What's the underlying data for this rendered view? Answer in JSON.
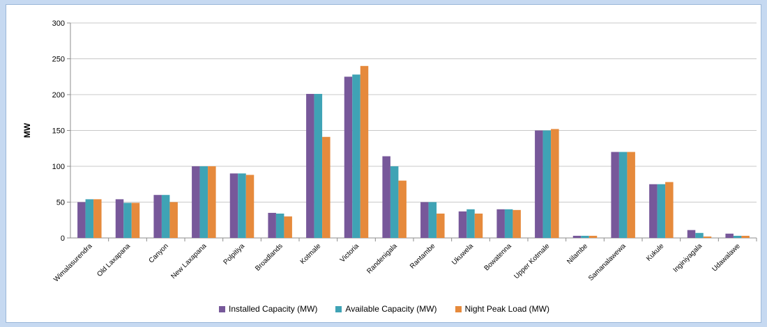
{
  "chart_data": {
    "type": "bar",
    "title": "",
    "xlabel": "",
    "ylabel": "MW",
    "ylim": [
      0,
      300
    ],
    "yticks": [
      0,
      50,
      100,
      150,
      200,
      250,
      300
    ],
    "grid": true,
    "legend_position": "bottom",
    "categories": [
      "Wimalasurendra",
      "Old Laxapana",
      "Canyon",
      "New Laxapana",
      "Polpitiya",
      "Broadlands",
      "Kotmale",
      "Victoria",
      "Randenigala",
      "Rantambe",
      "Ukuwela",
      "Bowatenna",
      "Upper Kotmale",
      "Nilambe",
      "Samanalawewa",
      "Kukule",
      "Inginiyagala",
      "Udawalawe"
    ],
    "series": [
      {
        "name": "Installed Capacity (MW)",
        "color": "#77589a",
        "values": [
          50,
          54,
          60,
          100,
          90,
          35,
          201,
          225,
          114,
          50,
          37,
          40,
          150,
          3,
          120,
          75,
          11,
          6
        ]
      },
      {
        "name": "Available Capacity (MW)",
        "color": "#3fa3b5",
        "values": [
          54,
          49,
          60,
          100,
          90,
          34,
          201,
          228,
          100,
          50,
          40,
          40,
          150,
          3,
          120,
          75,
          7,
          3
        ]
      },
      {
        "name": "Night Peak Load (MW)",
        "color": "#e68a3c",
        "values": [
          54,
          49,
          50,
          100,
          88,
          30,
          141,
          240,
          80,
          34,
          34,
          39,
          152,
          3,
          120,
          78,
          2,
          3
        ]
      }
    ]
  }
}
